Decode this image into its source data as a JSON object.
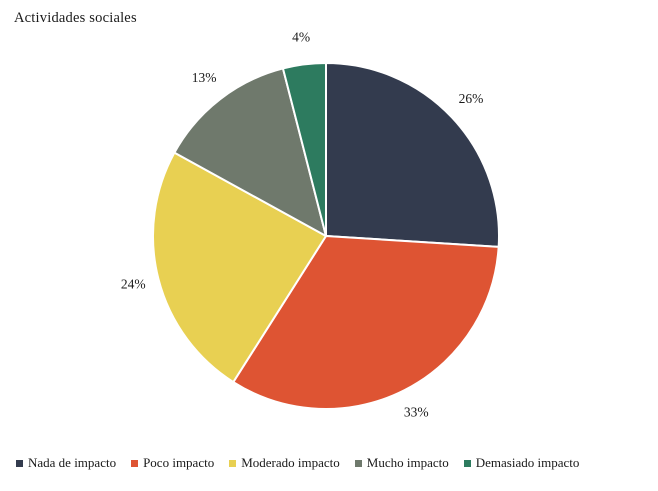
{
  "title": "Actividades sociales",
  "chart_data": {
    "type": "pie",
    "title": "Actividades sociales",
    "categories": [
      "Nada de impacto",
      "Poco impacto",
      "Moderado impacto",
      "Mucho impacto",
      "Demasiado impacto"
    ],
    "values": [
      26,
      33,
      24,
      13,
      4
    ],
    "value_labels": [
      "26%",
      "33%",
      "24%",
      "13%",
      "4%"
    ],
    "colors": [
      "#333b4e",
      "#de5433",
      "#e8d052",
      "#6f796c",
      "#2d7b5f"
    ],
    "start_angle_deg": 0,
    "direction": "clockwise",
    "label_position": "outside",
    "slice_border_color": "#ffffff",
    "legend_position": "bottom",
    "background_color": "#ffffff",
    "text_color": "#1a1a1a"
  },
  "legend": {
    "items": [
      {
        "label": "Nada de impacto",
        "color": "#333b4e"
      },
      {
        "label": "Poco impacto",
        "color": "#de5433"
      },
      {
        "label": "Moderado impacto",
        "color": "#e8d052"
      },
      {
        "label": "Mucho impacto",
        "color": "#6f796c"
      },
      {
        "label": "Demasiado impacto",
        "color": "#2d7b5f"
      }
    ]
  }
}
